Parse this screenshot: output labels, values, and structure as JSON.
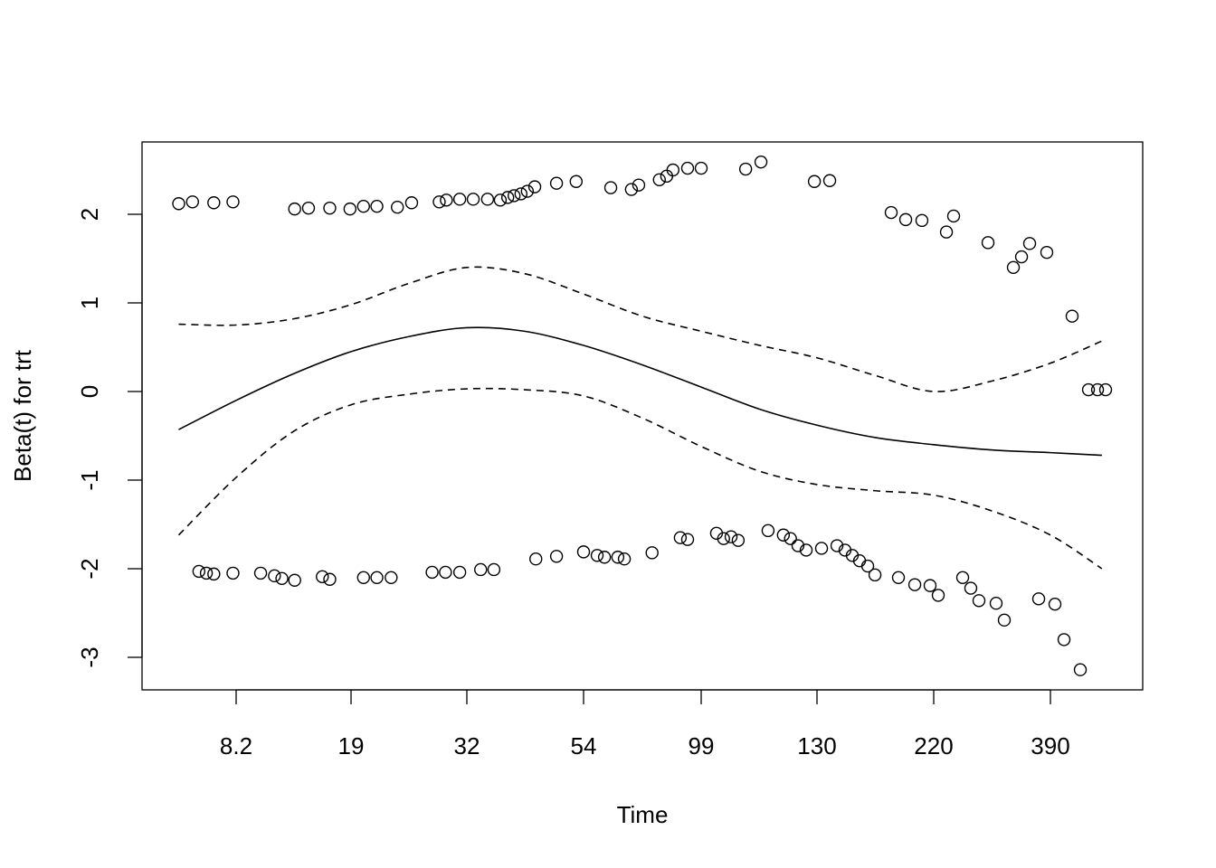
{
  "chart_data": {
    "type": "scatter",
    "title": "",
    "xlabel": "Time",
    "ylabel": "Beta(t) for trt",
    "x_ticks": [
      8.2,
      19,
      32,
      54,
      99,
      130,
      220,
      390
    ],
    "x_tick_labels": [
      "8.2",
      "19",
      "32",
      "54",
      "99",
      "130",
      "220",
      "390"
    ],
    "y_ticks": [
      -3,
      -2,
      -1,
      0,
      1,
      2
    ],
    "y_tick_labels": [
      "-3",
      "-2",
      "-1",
      "0",
      "1",
      "2"
    ],
    "ylim": [
      -3.3,
      2.85
    ],
    "grid": false,
    "points": [
      [
        2.8,
        2.12
      ],
      [
        4.1,
        2.14
      ],
      [
        6.1,
        2.13
      ],
      [
        7.9,
        2.14
      ],
      [
        13.7,
        2.06
      ],
      [
        15.0,
        2.07
      ],
      [
        17.0,
        2.07
      ],
      [
        18.9,
        2.06
      ],
      [
        20.4,
        2.09
      ],
      [
        21.9,
        2.09
      ],
      [
        24.2,
        2.08
      ],
      [
        25.8,
        2.13
      ],
      [
        28.9,
        2.14
      ],
      [
        29.7,
        2.16
      ],
      [
        31.2,
        2.17
      ],
      [
        33.2,
        2.17
      ],
      [
        35.9,
        2.17
      ],
      [
        38.3,
        2.16
      ],
      [
        39.7,
        2.19
      ],
      [
        40.9,
        2.21
      ],
      [
        42.2,
        2.23
      ],
      [
        43.4,
        2.26
      ],
      [
        44.8,
        2.31
      ],
      [
        48.9,
        2.35
      ],
      [
        52.6,
        2.37
      ],
      [
        64.4,
        2.3
      ],
      [
        72.3,
        2.28
      ],
      [
        75.1,
        2.33
      ],
      [
        83.0,
        2.39
      ],
      [
        85.8,
        2.43
      ],
      [
        88.2,
        2.5
      ],
      [
        93.8,
        2.52
      ],
      [
        99,
        2.52
      ],
      [
        110.9,
        2.51
      ],
      [
        115.0,
        2.59
      ],
      [
        129.3,
        2.37
      ],
      [
        139.8,
        2.38
      ],
      [
        187.2,
        2.02
      ],
      [
        198.4,
        1.94
      ],
      [
        210.9,
        1.93
      ],
      [
        238.5,
        1.8
      ],
      [
        249.0,
        1.98
      ],
      [
        299.1,
        1.68
      ],
      [
        336.0,
        1.4
      ],
      [
        347.9,
        1.52
      ],
      [
        359.7,
        1.67
      ],
      [
        384.7,
        1.57
      ],
      [
        421.6,
        0.85
      ],
      [
        445.4,
        0.02
      ],
      [
        458.6,
        0.02
      ],
      [
        470.4,
        0.02
      ],
      [
        4.7,
        -2.03
      ],
      [
        5.4,
        -2.05
      ],
      [
        6.1,
        -2.06
      ],
      [
        7.9,
        -2.05
      ],
      [
        10.5,
        -2.05
      ],
      [
        11.8,
        -2.08
      ],
      [
        12.5,
        -2.11
      ],
      [
        13.7,
        -2.13
      ],
      [
        16.3,
        -2.09
      ],
      [
        17.0,
        -2.12
      ],
      [
        20.4,
        -2.1
      ],
      [
        21.9,
        -2.1
      ],
      [
        23.5,
        -2.1
      ],
      [
        28.1,
        -2.04
      ],
      [
        29.6,
        -2.04
      ],
      [
        31.2,
        -2.04
      ],
      [
        34.6,
        -2.01
      ],
      [
        37.1,
        -2.01
      ],
      [
        45.0,
        -1.89
      ],
      [
        48.9,
        -1.86
      ],
      [
        54.0,
        -1.81
      ],
      [
        59.2,
        -1.85
      ],
      [
        62.0,
        -1.87
      ],
      [
        67.1,
        -1.87
      ],
      [
        69.6,
        -1.89
      ],
      [
        80.2,
        -1.82
      ],
      [
        91.0,
        -1.65
      ],
      [
        93.8,
        -1.67
      ],
      [
        103.1,
        -1.6
      ],
      [
        105.0,
        -1.66
      ],
      [
        107.0,
        -1.64
      ],
      [
        108.9,
        -1.68
      ],
      [
        116.9,
        -1.57
      ],
      [
        121.0,
        -1.62
      ],
      [
        122.9,
        -1.66
      ],
      [
        124.9,
        -1.74
      ],
      [
        127.1,
        -1.79
      ],
      [
        133.5,
        -1.77
      ],
      [
        145.4,
        -1.74
      ],
      [
        151.6,
        -1.79
      ],
      [
        157.2,
        -1.85
      ],
      [
        162.8,
        -1.91
      ],
      [
        169.1,
        -1.97
      ],
      [
        174.7,
        -2.07
      ],
      [
        192.8,
        -2.1
      ],
      [
        205.4,
        -2.18
      ],
      [
        217.2,
        -2.19
      ],
      [
        226.6,
        -2.3
      ],
      [
        262.2,
        -2.1
      ],
      [
        274.0,
        -2.22
      ],
      [
        285.9,
        -2.36
      ],
      [
        310.9,
        -2.39
      ],
      [
        322.8,
        -2.58
      ],
      [
        372.9,
        -2.34
      ],
      [
        396.6,
        -2.4
      ],
      [
        409.8,
        -2.8
      ],
      [
        433.5,
        -3.14
      ]
    ],
    "curve_x": [
      2.8,
      8.2,
      13.6,
      19,
      25.5,
      32,
      42.9,
      54,
      76.5,
      99,
      114.7,
      130,
      175.1,
      220,
      305.7,
      390,
      465
    ],
    "fit": [
      -0.43,
      -0.1,
      0.2,
      0.45,
      0.62,
      0.72,
      0.68,
      0.52,
      0.3,
      0.05,
      -0.2,
      -0.38,
      -0.52,
      -0.6,
      -0.66,
      -0.69,
      -0.72
    ],
    "upper": [
      0.76,
      0.75,
      0.82,
      0.98,
      1.22,
      1.4,
      1.33,
      1.1,
      0.85,
      0.68,
      0.52,
      0.38,
      0.18,
      0.0,
      0.12,
      0.32,
      0.57
    ],
    "lower": [
      -1.62,
      -0.97,
      -0.45,
      -0.15,
      -0.03,
      0.03,
      0.02,
      -0.05,
      -0.3,
      -0.62,
      -0.9,
      -1.05,
      -1.12,
      -1.17,
      -1.35,
      -1.62,
      -2.0
    ]
  }
}
